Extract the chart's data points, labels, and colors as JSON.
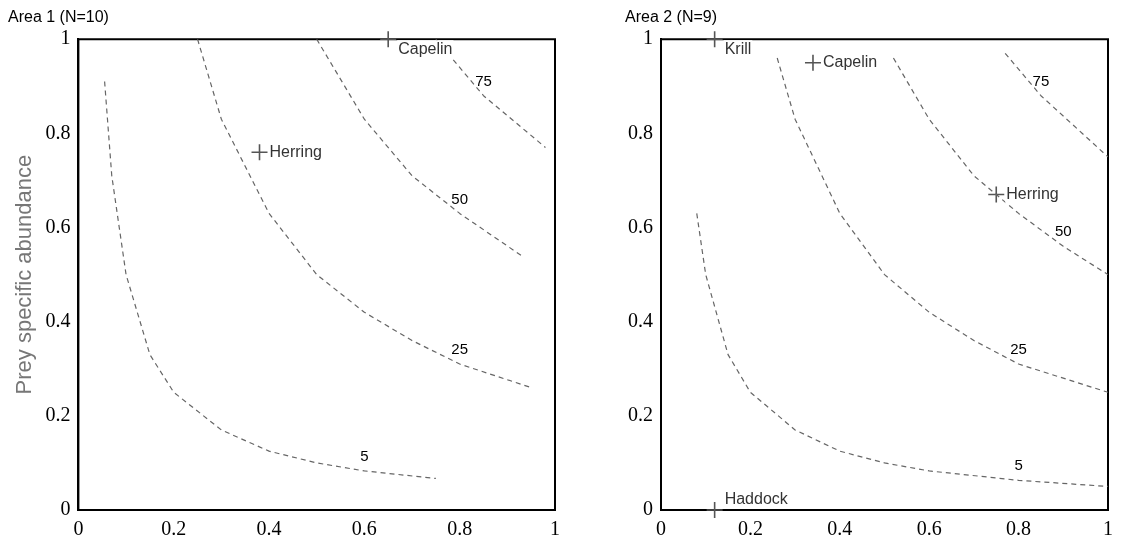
{
  "chart_data": [
    {
      "type": "scatter",
      "title": "Area 1 (N=10)",
      "ylabel": "Prey specific abundance",
      "xlim": [
        0,
        1
      ],
      "ylim": [
        0,
        1
      ],
      "xticks": [
        0,
        0.2,
        0.4,
        0.6,
        0.8,
        1
      ],
      "yticks": [
        0,
        0.2,
        0.4,
        0.6,
        0.8,
        1
      ],
      "grid": false,
      "legend": false,
      "marker": "cross",
      "line_style": "dashed",
      "series": [
        {
          "type": "line",
          "name": "5",
          "marker": "none",
          "color": "#666666",
          "x": [
            0.055,
            0.07,
            0.1,
            0.15,
            0.2,
            0.3,
            0.4,
            0.5,
            0.6,
            0.75
          ],
          "values": [
            0.91,
            0.71,
            0.5,
            0.33,
            0.25,
            0.17,
            0.125,
            0.1,
            0.083,
            0.067
          ]
        },
        {
          "type": "line",
          "name": "25",
          "marker": "none",
          "color": "#666666",
          "x": [
            0.25,
            0.3,
            0.4,
            0.5,
            0.6,
            0.7,
            0.8,
            0.95
          ],
          "values": [
            1,
            0.83,
            0.63,
            0.5,
            0.42,
            0.36,
            0.31,
            0.26
          ]
        },
        {
          "type": "line",
          "name": "50",
          "marker": "none",
          "color": "#666666",
          "x": [
            0.5,
            0.6,
            0.7,
            0.8,
            0.93
          ],
          "values": [
            1,
            0.83,
            0.71,
            0.63,
            0.54
          ]
        },
        {
          "type": "line",
          "name": "75",
          "marker": "none",
          "color": "#666666",
          "x": [
            0.75,
            0.85,
            0.98
          ],
          "values": [
            1,
            0.88,
            0.77
          ]
        },
        {
          "name": "Capelin",
          "color": "#555555",
          "x": [
            0.65
          ],
          "values": [
            1.0
          ]
        },
        {
          "name": "Herring",
          "color": "#555555",
          "x": [
            0.38
          ],
          "values": [
            0.76
          ]
        }
      ]
    },
    {
      "type": "scatter",
      "title": "Area 2 (N=9)",
      "xlim": [
        0,
        1
      ],
      "ylim": [
        0,
        1
      ],
      "xticks": [
        0,
        0.2,
        0.4,
        0.6,
        0.8,
        1
      ],
      "yticks": [
        0,
        0.2,
        0.4,
        0.6,
        0.8,
        1
      ],
      "grid": false,
      "legend": false,
      "marker": "cross",
      "line_style": "dashed",
      "series": [
        {
          "type": "line",
          "name": "5",
          "marker": "none",
          "color": "#666666",
          "x": [
            0.08,
            0.1,
            0.15,
            0.2,
            0.3,
            0.4,
            0.5,
            0.6,
            0.8,
            1
          ],
          "values": [
            0.63,
            0.5,
            0.33,
            0.25,
            0.17,
            0.125,
            0.1,
            0.083,
            0.063,
            0.05
          ]
        },
        {
          "type": "line",
          "name": "25",
          "marker": "none",
          "color": "#666666",
          "x": [
            0.26,
            0.3,
            0.4,
            0.5,
            0.6,
            0.7,
            0.8,
            1
          ],
          "values": [
            0.96,
            0.83,
            0.63,
            0.5,
            0.42,
            0.36,
            0.31,
            0.25
          ]
        },
        {
          "type": "line",
          "name": "50",
          "marker": "none",
          "color": "#666666",
          "x": [
            0.52,
            0.6,
            0.7,
            0.8,
            0.9,
            1
          ],
          "values": [
            0.96,
            0.83,
            0.71,
            0.63,
            0.56,
            0.5
          ]
        },
        {
          "type": "line",
          "name": "75",
          "marker": "none",
          "color": "#666666",
          "x": [
            0.77,
            0.85,
            1
          ],
          "values": [
            0.97,
            0.88,
            0.75
          ]
        },
        {
          "name": "Krill",
          "color": "#555555",
          "x": [
            0.12
          ],
          "values": [
            1.0
          ]
        },
        {
          "name": "Capelin",
          "color": "#555555",
          "x": [
            0.34
          ],
          "values": [
            0.95
          ]
        },
        {
          "name": "Herring",
          "color": "#555555",
          "x": [
            0.75
          ],
          "values": [
            0.67
          ]
        },
        {
          "name": "Haddock",
          "color": "#555555",
          "x": [
            0.12
          ],
          "values": [
            0.0
          ]
        }
      ]
    }
  ]
}
